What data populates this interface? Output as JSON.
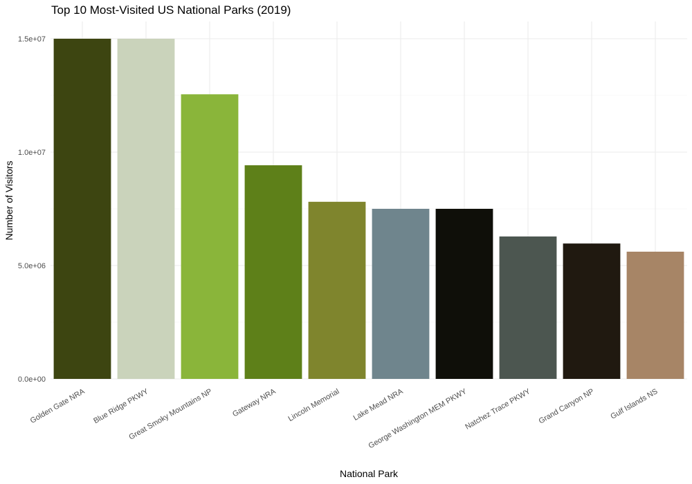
{
  "chart_data": {
    "type": "bar",
    "title": "Top 10 Most-Visited US National Parks (2019)",
    "xlabel": "National Park",
    "ylabel": "Number of Visitors",
    "categories": [
      "Golden Gate NRA",
      "Blue Ridge PKWY",
      "Great Smoky Mountains NP",
      "Gateway NRA",
      "Lincoln Memorial",
      "Lake Mead NRA",
      "George Washington MEM PKWY",
      "Natchez Trace PKWY",
      "Grand Canyon NP",
      "Gulf Islands NS"
    ],
    "values": [
      15000000,
      15000000,
      12550000,
      9420000,
      7810000,
      7500000,
      7500000,
      6280000,
      5970000,
      5610000
    ],
    "colors": [
      "#3d4511",
      "#cad3bb",
      "#8ab53a",
      "#5e8019",
      "#7f852d",
      "#6f858d",
      "#0f0f09",
      "#4c5650",
      "#201910",
      "#a78566"
    ],
    "ylim": [
      0,
      15000000
    ],
    "yticks": [
      0,
      5000000,
      10000000,
      15000000
    ],
    "ytick_labels": [
      "0.0e+00",
      "5.0e+06",
      "1.0e+07",
      "1.5e+07"
    ],
    "grid": true,
    "legend": "none"
  }
}
